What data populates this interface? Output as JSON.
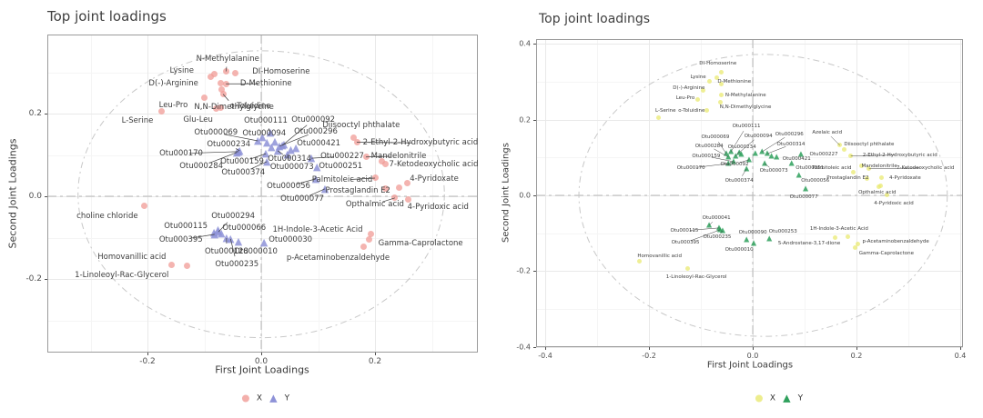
{
  "chart_data": [
    {
      "type": "scatter",
      "title": "Top joint loadings",
      "xlabel": "First Joint Loadings",
      "ylabel": "Second Joint Loadings",
      "x_ticks": [
        -0.2,
        0.0,
        0.2
      ],
      "y_ticks": [
        0.2,
        0.0,
        -0.2
      ],
      "x_range": [
        -0.376,
        0.381
      ],
      "y_range": [
        -0.378,
        0.391
      ],
      "legend_labels": [
        "X",
        "Y"
      ],
      "colors": {
        "x": "#F09B96",
        "y": "#8E92D8"
      },
      "ellipse": {
        "cx": 0.0,
        "cy": 0.005,
        "rx": 0.322,
        "ry": 0.347
      },
      "point_columns": [
        "label",
        "x",
        "y",
        "label_dx",
        "label_dy",
        "leader"
      ],
      "series": [
        {
          "name": "X",
          "marker": "circle",
          "points": [
            [
              "N-Methylalanine",
              -0.062,
              0.302,
              2,
              -14,
              1
            ],
            [
              "Lysine",
              -0.082,
              0.296,
              -36,
              -3,
              0
            ],
            [
              "DI-Homoserine",
              -0.045,
              0.297,
              50,
              -2,
              0
            ],
            [
              "D(-)-Arginine",
              -0.071,
              0.273,
              -52,
              0,
              0
            ],
            [
              "D-Methionine",
              -0.062,
              0.272,
              44,
              0,
              1
            ],
            [
              "N,N-Dimethylglycine",
              -0.067,
              0.247,
              12,
              14,
              1
            ],
            [
              "Leu-Pro",
              -0.1,
              0.238,
              -34,
              8,
              0
            ],
            [
              "o-Toluidine",
              -0.072,
              0.215,
              33,
              -1,
              0
            ],
            [
              "Glu-Leu",
              -0.079,
              0.212,
              -20,
              12,
              0
            ],
            [
              "L-Serine",
              -0.176,
              0.205,
              -26,
              10,
              0
            ],
            [
              "choline chloride",
              -0.205,
              -0.024,
              -41,
              11,
              0
            ],
            [
              "Homovanillic acid",
              -0.157,
              -0.165,
              -44,
              -8,
              0
            ],
            [
              "1-Linoleoyl-Rac-Glycerol",
              -0.13,
              -0.169,
              -72,
              10,
              0
            ],
            [
              "Diisooctyl phthalate",
              0.163,
              0.142,
              8,
              -13,
              0
            ],
            [
              "2-Ethyl-2-Hydroxybutyric acid",
              0.168,
              0.131,
              70,
              1,
              1
            ],
            [
              "Mandelonitrile",
              0.184,
              0.095,
              36,
              -1,
              1
            ],
            [
              "7-Ketodeoxycholic acid",
              0.212,
              0.084,
              57,
              3,
              0
            ],
            [
              "Palmitoleic acid",
              0.2,
              0.044,
              -36,
              2,
              1
            ],
            [
              "4-Pyridoxate",
              0.256,
              0.031,
              30,
              -5,
              0
            ],
            [
              "Prostaglandin E2",
              0.218,
              0.018,
              -30,
              2,
              0
            ],
            [
              "Opthalmic acid",
              0.235,
              -0.004,
              -22,
              7,
              1
            ],
            [
              "4-Pyridoxic acid",
              0.258,
              -0.008,
              33,
              8,
              0
            ],
            [
              "1H-Indole-3-Acetic Acid",
              0.192,
              -0.092,
              -58,
              -5,
              0
            ],
            [
              "Gamma-Caprolactone",
              0.189,
              -0.105,
              57,
              4,
              0
            ],
            [
              "p-Acetaminobenzaldehyde",
              0.18,
              -0.121,
              -28,
              13,
              0
            ],
            [
              "",
              -0.089,
              0.29,
              0,
              0,
              0
            ],
            [
              "",
              -0.069,
              0.258,
              0,
              0,
              0
            ],
            [
              "",
              0.219,
              0.079,
              0,
              0,
              0
            ],
            [
              "",
              0.243,
              0.02,
              0,
              0,
              0
            ]
          ]
        },
        {
          "name": "Y",
          "marker": "triangle",
          "points": [
            [
              "Otu000111",
              0.016,
              0.154,
              -5,
              -13,
              1
            ],
            [
              "Otu000092",
              0.037,
              0.123,
              34,
              -28,
              1
            ],
            [
              "Otu000069",
              -0.006,
              0.134,
              -46,
              -9,
              1
            ],
            [
              "Otu000094",
              0.01,
              0.13,
              -3,
              -10,
              0
            ],
            [
              "Otu000296",
              0.032,
              0.121,
              40,
              -16,
              1
            ],
            [
              "Otu000421",
              0.061,
              0.117,
              25,
              -5,
              0
            ],
            [
              "Otu000234",
              -0.038,
              0.11,
              -12,
              -7,
              1
            ],
            [
              "Otu000170",
              -0.04,
              0.108,
              -63,
              2,
              1
            ],
            [
              "Otu000159",
              0.008,
              0.103,
              -26,
              9,
              1
            ],
            [
              "Otu000284",
              -0.043,
              0.106,
              -39,
              15,
              1
            ],
            [
              "Otu000314",
              0.029,
              0.11,
              13,
              9,
              1
            ],
            [
              "Otu000227",
              0.088,
              0.092,
              34,
              -2,
              1
            ],
            [
              "Otu000374",
              0.01,
              0.084,
              -26,
              12,
              1
            ],
            [
              "Otu000073",
              0.046,
              0.101,
              5,
              14,
              1
            ],
            [
              "Otu000251",
              0.098,
              0.07,
              26,
              -1,
              0
            ],
            [
              "Otu000056",
              0.096,
              0.042,
              -30,
              8,
              1
            ],
            [
              "Otu000077",
              0.112,
              0.018,
              -25,
              11,
              1
            ],
            [
              "Otu000294",
              -0.075,
              -0.086,
              16,
              -17,
              1
            ],
            [
              "Otu000115",
              -0.083,
              -0.088,
              -31,
              -7,
              0
            ],
            [
              "Otu000066",
              -0.07,
              -0.09,
              25,
              -6,
              0
            ],
            [
              "Otu000395",
              -0.082,
              -0.092,
              -37,
              6,
              1
            ],
            [
              "Otu000128",
              -0.061,
              -0.101,
              0,
              15,
              1
            ],
            [
              "Otu000235",
              -0.054,
              -0.103,
              7,
              28,
              1
            ],
            [
              "Otu000010",
              -0.04,
              -0.11,
              19,
              11,
              0
            ],
            [
              "Otu000030",
              0.005,
              -0.112,
              29,
              -3,
              0
            ],
            [
              "",
              0.002,
              0.142,
              0,
              0,
              0
            ],
            [
              "",
              0.024,
              0.132,
              0,
              0,
              0
            ],
            [
              "",
              0.04,
              0.125,
              0,
              0,
              0
            ],
            [
              "",
              0.018,
              0.118,
              0,
              0,
              0
            ],
            [
              "",
              0.052,
              0.112,
              0,
              0,
              0
            ],
            [
              "",
              -0.076,
              -0.082,
              0,
              0,
              0
            ]
          ]
        }
      ]
    },
    {
      "type": "scatter",
      "title": "Top joint loadings",
      "xlabel": "First Joint Loadings",
      "ylabel": "Second Joint Loadings",
      "x_ticks": [
        -0.4,
        -0.2,
        0.0,
        0.2,
        0.4
      ],
      "y_ticks": [
        0.4,
        0.2,
        0.0,
        -0.2,
        -0.4
      ],
      "x_range": [
        -0.418,
        0.405
      ],
      "y_range": [
        -0.401,
        0.413
      ],
      "legend_labels": [
        "X",
        "Y"
      ],
      "colors": {
        "x": "#E9E972",
        "y": "#2FA05C"
      },
      "ellipse": {
        "cx": 0.02,
        "cy": 0.0,
        "rx": 0.355,
        "ry": 0.372
      },
      "point_columns": [
        "label",
        "x",
        "y",
        "label_dx",
        "label_dy",
        "leader"
      ],
      "series": [
        {
          "name": "X",
          "marker": "circle",
          "points": [
            [
              "DI-Homoserine",
              -0.06,
              0.326,
              -4,
              -9,
              0
            ],
            [
              "Lysine",
              -0.084,
              0.302,
              -12,
              -4,
              0
            ],
            [
              "D-Methionine",
              -0.06,
              0.293,
              14,
              -3,
              0
            ],
            [
              "D(-)-Arginine",
              -0.095,
              0.278,
              -16,
              -2,
              0
            ],
            [
              "N-Methylalanine",
              -0.061,
              0.266,
              27,
              1,
              0
            ],
            [
              "Leu-Pro",
              -0.107,
              0.252,
              -13,
              -2,
              0
            ],
            [
              "N,N-Dimethylglycine",
              -0.063,
              0.245,
              28,
              5,
              0
            ],
            [
              "o-Toluidine",
              -0.088,
              0.225,
              -17,
              1,
              0
            ],
            [
              "L-Serine",
              -0.182,
              0.206,
              8,
              -7,
              0
            ],
            [
              "Azelaic acid",
              0.168,
              0.132,
              -14,
              -14,
              1
            ],
            [
              "Diisooctyl phthalate",
              0.177,
              0.12,
              27,
              -6,
              0
            ],
            [
              "2-Ethyl-2-Hydroxybutyric acid",
              0.189,
              0.104,
              54,
              -1,
              1
            ],
            [
              "Mandelonitrile",
              0.209,
              0.077,
              20,
              0,
              0
            ],
            [
              "7-Ketodeoxycholic acid",
              0.224,
              0.07,
              62,
              -1,
              1
            ],
            [
              "Palmitoleic acid",
              0.193,
              0.06,
              -23,
              -5,
              0
            ],
            [
              "Prostaglandin E2",
              0.22,
              0.044,
              -21,
              -1,
              0
            ],
            [
              "4-Pyridoxate",
              0.248,
              0.046,
              26,
              0,
              0
            ],
            [
              "Opthalmic acid",
              0.247,
              0.026,
              -4,
              8,
              0
            ],
            [
              "4-Pyridoxic acid",
              0.258,
              0.002,
              8,
              10,
              0
            ],
            [
              "Homovanillic acid",
              -0.218,
              -0.173,
              22,
              -5,
              0
            ],
            [
              "1-Linoleoyl-Rac-Glycerol",
              -0.126,
              -0.192,
              10,
              10,
              0
            ],
            [
              "1H-Indole-3-Acetic Acid",
              0.184,
              -0.108,
              -10,
              -8,
              0
            ],
            [
              "5-Androstane-3,17-dione",
              0.158,
              -0.112,
              -28,
              6,
              0
            ],
            [
              "p-Acetaminobenzaldehyde",
              0.202,
              -0.128,
              42,
              -2,
              0
            ],
            [
              "Gamma-Caprolactone",
              0.198,
              -0.137,
              34,
              7,
              0
            ],
            [
              "",
              -0.07,
              0.31,
              0,
              0,
              0
            ],
            [
              "",
              0.243,
              0.022,
              0,
              0,
              0
            ]
          ]
        },
        {
          "name": "Y",
          "marker": "triangle",
          "points": [
            [
              "Otu000111",
              -0.042,
              0.115,
              17,
              -28,
              1
            ],
            [
              "Otu000069",
              -0.051,
              0.11,
              -12,
              -18,
              1
            ],
            [
              "Otu000094",
              -0.026,
              0.113,
              21,
              -18,
              1
            ],
            [
              "Otu000296",
              0.018,
              0.115,
              30,
              -19,
              1
            ],
            [
              "Otu000284",
              -0.047,
              0.101,
              -21,
              -12,
              1
            ],
            [
              "Otu000234",
              -0.033,
              0.103,
              7,
              -10,
              1
            ],
            [
              "Otu000314",
              0.028,
              0.11,
              26,
              -10,
              1
            ],
            [
              "Otu000159",
              -0.037,
              0.089,
              -30,
              -6,
              1
            ],
            [
              "Otu000227",
              0.093,
              0.108,
              25,
              0,
              0
            ],
            [
              "Otu000092",
              -0.007,
              0.094,
              -16,
              5,
              1
            ],
            [
              "Otu000421",
              0.046,
              0.101,
              22,
              2,
              0
            ],
            [
              "Otu000170",
              -0.047,
              0.084,
              -41,
              5,
              1
            ],
            [
              "Otu000073",
              0.023,
              0.084,
              10,
              8,
              1
            ],
            [
              "Otu000374",
              -0.012,
              0.07,
              -8,
              13,
              1
            ],
            [
              "Otu000251",
              0.075,
              0.084,
              20,
              5,
              0
            ],
            [
              "Otu000056",
              0.089,
              0.053,
              18,
              6,
              0
            ],
            [
              "Otu000077",
              0.102,
              0.017,
              -2,
              9,
              0
            ],
            [
              "Otu000041",
              -0.084,
              -0.079,
              8,
              -8,
              1
            ],
            [
              "Otu000115",
              -0.065,
              -0.086,
              -38,
              3,
              1
            ],
            [
              "Otu000235",
              -0.058,
              -0.094,
              -6,
              7,
              1
            ],
            [
              "Otu000395",
              -0.063,
              -0.091,
              -38,
              14,
              1
            ],
            [
              "Otu000090",
              -0.012,
              -0.118,
              7,
              -8,
              0
            ],
            [
              "Otu000253",
              0.032,
              -0.115,
              15,
              -8,
              0
            ],
            [
              "Otu000010",
              0.002,
              -0.127,
              -16,
              7,
              0
            ],
            [
              "",
              -0.022,
              0.108,
              0,
              0,
              0
            ],
            [
              "",
              0.005,
              0.11,
              0,
              0,
              0
            ],
            [
              "",
              0.036,
              0.103,
              0,
              0,
              0
            ]
          ]
        }
      ]
    }
  ]
}
